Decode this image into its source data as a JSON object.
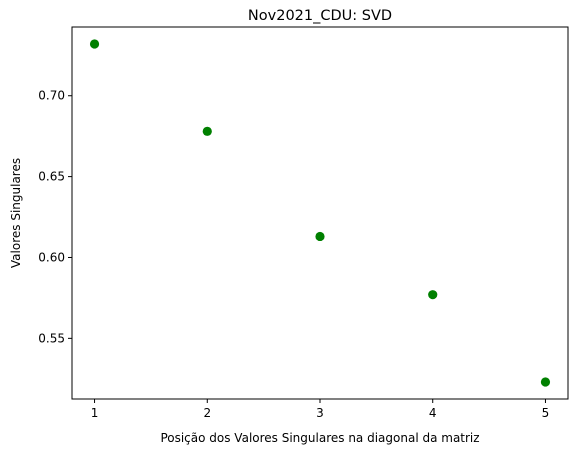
{
  "chart_data": {
    "type": "scatter",
    "title": "Nov2021_CDU: SVD",
    "xlabel": "Posição dos Valores Singulares na diagonal da matriz",
    "ylabel": "Valores Singulares",
    "x": [
      1,
      2,
      3,
      4,
      5
    ],
    "y": [
      0.732,
      0.678,
      0.613,
      0.577,
      0.523
    ],
    "xlim": [
      0.8,
      5.2
    ],
    "ylim": [
      0.5125,
      0.7425
    ],
    "xticks": [
      "1",
      "2",
      "3",
      "4",
      "5"
    ],
    "yticks": [
      "0.55",
      "0.60",
      "0.65",
      "0.70"
    ],
    "marker_color": "#008000",
    "grid": false,
    "legend": "none"
  }
}
